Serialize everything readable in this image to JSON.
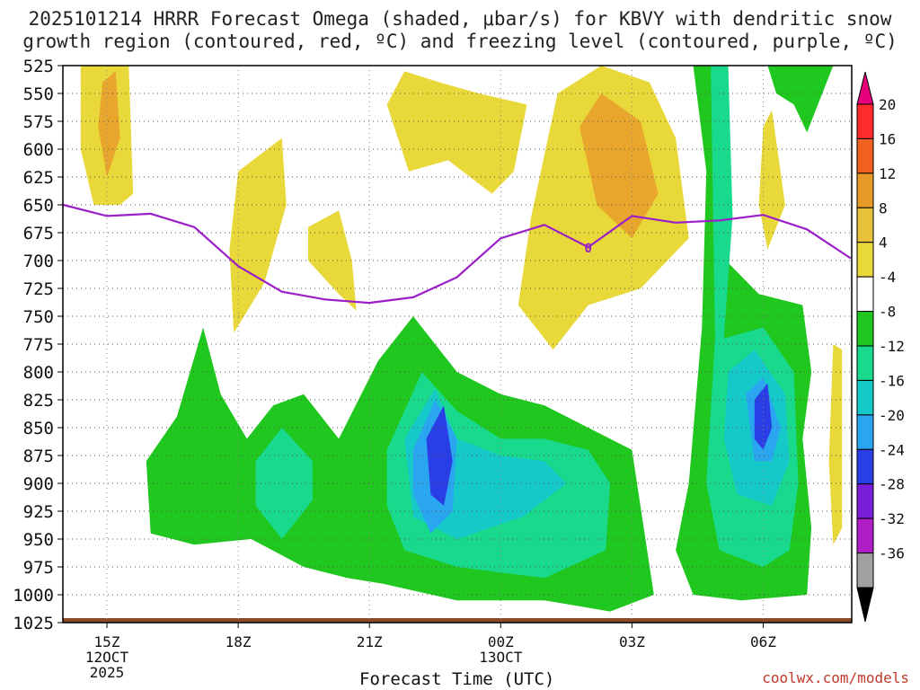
{
  "header": {
    "line1": "2025101214 HRRR Forecast Omega (shaded, μbar/s) for KBVY with dendritic snow",
    "line2": "growth region (contoured, red, ºC) and freezing level (contoured, purple, ºC)"
  },
  "chart_data": {
    "type": "heatmap",
    "title": "2025101214 HRRR Forecast Omega (shaded, μbar/s) for KBVY with dendritic snow growth region (contoured, red, ºC) and freezing level (contoured, purple, ºC)",
    "xlabel": "Forecast Time (UTC)",
    "ylabel": "",
    "x_ticks": [
      {
        "hour": 15,
        "lines": [
          "15Z",
          "12OCT",
          "2025"
        ]
      },
      {
        "hour": 18,
        "lines": [
          "18Z"
        ]
      },
      {
        "hour": 21,
        "lines": [
          "21Z"
        ]
      },
      {
        "hour": 24,
        "lines": [
          "00Z",
          "13OCT"
        ]
      },
      {
        "hour": 27,
        "lines": [
          "03Z"
        ]
      },
      {
        "hour": 30,
        "lines": [
          "06Z"
        ]
      }
    ],
    "xlim": [
      14.0,
      32.0
    ],
    "y_levels": [
      "525",
      "550",
      "575",
      "600",
      "625",
      "650",
      "675",
      "700",
      "725",
      "750",
      "775",
      "800",
      "825",
      "850",
      "875",
      "900",
      "925",
      "950",
      "975",
      "1000",
      "1025"
    ],
    "ylim": [
      525,
      1025
    ],
    "colorbar": {
      "labels": [
        "20",
        "16",
        "12",
        "8",
        "4",
        "-4",
        "-8",
        "-12",
        "-16",
        "-20",
        "-24",
        "-28",
        "-32",
        "-36"
      ],
      "colors": [
        "#e6007a",
        "#ff2a2a",
        "#f0601e",
        "#e89a28",
        "#e8c13a",
        "#e8d83a",
        "#ffffff",
        "#1fc71f",
        "#19d98c",
        "#16c9c9",
        "#2aa6f0",
        "#2a3ee6",
        "#7a1ed9",
        "#b01ec8",
        "#a0a0a0",
        "#000000"
      ]
    },
    "freezing_level": {
      "label": "0",
      "hours": [
        14.0,
        15.0,
        16.0,
        17.0,
        18.0,
        19.0,
        20.0,
        21.0,
        22.0,
        23.0,
        24.0,
        25.0,
        26.0,
        27.0,
        28.0,
        29.0,
        30.0,
        31.0,
        32.0
      ],
      "pressure": [
        650,
        660,
        658,
        670,
        705,
        728,
        735,
        738,
        733,
        715,
        680,
        668,
        688,
        660,
        666,
        664,
        659,
        672,
        698
      ]
    },
    "regions": [
      {
        "level": 4,
        "pts": [
          [
            14.4,
            525
          ],
          [
            15.5,
            525
          ],
          [
            15.6,
            640
          ],
          [
            15.3,
            650
          ],
          [
            14.7,
            650
          ],
          [
            14.4,
            600
          ]
        ]
      },
      {
        "level": 8,
        "pts": [
          [
            14.9,
            540
          ],
          [
            15.2,
            530
          ],
          [
            15.3,
            590
          ],
          [
            15.0,
            625
          ],
          [
            14.8,
            580
          ]
        ]
      },
      {
        "level": 4,
        "pts": [
          [
            17.8,
            690
          ],
          [
            18.0,
            620
          ],
          [
            19.0,
            590
          ],
          [
            19.1,
            650
          ],
          [
            18.6,
            720
          ],
          [
            17.9,
            765
          ]
        ]
      },
      {
        "level": 4,
        "pts": [
          [
            19.6,
            670
          ],
          [
            20.3,
            655
          ],
          [
            20.6,
            700
          ],
          [
            20.7,
            745
          ],
          [
            20.3,
            730
          ],
          [
            19.6,
            700
          ]
        ]
      },
      {
        "level": 4,
        "pts": [
          [
            21.4,
            560
          ],
          [
            21.8,
            530
          ],
          [
            22.6,
            540
          ],
          [
            23.5,
            550
          ],
          [
            24.6,
            560
          ],
          [
            24.3,
            620
          ],
          [
            23.8,
            640
          ],
          [
            22.8,
            610
          ],
          [
            21.9,
            620
          ]
        ]
      },
      {
        "level": 4,
        "pts": [
          [
            25.3,
            550
          ],
          [
            26.3,
            525
          ],
          [
            27.4,
            540
          ],
          [
            28.0,
            590
          ],
          [
            28.3,
            680
          ],
          [
            27.2,
            725
          ],
          [
            26.0,
            740
          ],
          [
            25.2,
            780
          ],
          [
            24.4,
            740
          ],
          [
            24.7,
            660
          ]
        ]
      },
      {
        "level": 8,
        "pts": [
          [
            25.8,
            580
          ],
          [
            26.3,
            550
          ],
          [
            27.2,
            575
          ],
          [
            27.6,
            640
          ],
          [
            27.0,
            680
          ],
          [
            26.2,
            650
          ]
        ]
      },
      {
        "level": 4,
        "pts": [
          [
            31.6,
            775
          ],
          [
            31.8,
            780
          ],
          [
            31.8,
            940
          ],
          [
            31.6,
            955
          ],
          [
            31.5,
            880
          ]
        ]
      },
      {
        "level": 4,
        "pts": [
          [
            30.0,
            580
          ],
          [
            30.2,
            565
          ],
          [
            30.5,
            650
          ],
          [
            30.1,
            690
          ],
          [
            29.9,
            650
          ]
        ]
      },
      {
        "level": -4,
        "pts": [
          [
            15.9,
            880
          ],
          [
            16.6,
            840
          ],
          [
            17.2,
            760
          ],
          [
            17.6,
            820
          ],
          [
            18.2,
            860
          ],
          [
            18.8,
            830
          ],
          [
            19.5,
            820
          ],
          [
            20.3,
            860
          ],
          [
            21.2,
            790
          ],
          [
            22.0,
            750
          ],
          [
            23.0,
            800
          ],
          [
            24.0,
            820
          ],
          [
            25.0,
            830
          ],
          [
            26.0,
            850
          ],
          [
            27.0,
            870
          ],
          [
            27.5,
            1000
          ],
          [
            26.5,
            1015
          ],
          [
            25.0,
            1005
          ],
          [
            23.0,
            1005
          ],
          [
            21.3,
            990
          ],
          [
            20.5,
            985
          ],
          [
            19.5,
            975
          ],
          [
            18.3,
            950
          ],
          [
            17.0,
            955
          ],
          [
            16.0,
            945
          ]
        ]
      },
      {
        "level": -8,
        "pts": [
          [
            18.4,
            880
          ],
          [
            19.0,
            850
          ],
          [
            19.7,
            880
          ],
          [
            19.7,
            915
          ],
          [
            19.0,
            950
          ],
          [
            18.4,
            920
          ]
        ]
      },
      {
        "level": -8,
        "pts": [
          [
            21.4,
            870
          ],
          [
            22.2,
            800
          ],
          [
            23.0,
            835
          ],
          [
            24.0,
            860
          ],
          [
            25.0,
            860
          ],
          [
            26.0,
            870
          ],
          [
            26.5,
            900
          ],
          [
            26.4,
            960
          ],
          [
            25.0,
            985
          ],
          [
            23.0,
            975
          ],
          [
            21.8,
            960
          ],
          [
            21.4,
            920
          ]
        ]
      },
      {
        "level": -12,
        "pts": [
          [
            21.8,
            860
          ],
          [
            22.5,
            815
          ],
          [
            23.0,
            860
          ],
          [
            24.0,
            875
          ],
          [
            25.0,
            880
          ],
          [
            25.5,
            900
          ],
          [
            24.5,
            930
          ],
          [
            23.0,
            950
          ],
          [
            22.0,
            930
          ]
        ]
      },
      {
        "level": -16,
        "pts": [
          [
            22.0,
            870
          ],
          [
            22.5,
            825
          ],
          [
            23.0,
            860
          ],
          [
            22.9,
            925
          ],
          [
            22.4,
            945
          ],
          [
            22.0,
            910
          ]
        ]
      },
      {
        "level": -20,
        "pts": [
          [
            22.3,
            860
          ],
          [
            22.7,
            830
          ],
          [
            22.9,
            880
          ],
          [
            22.7,
            920
          ],
          [
            22.4,
            910
          ]
        ]
      },
      {
        "level": -4,
        "pts": [
          [
            28.4,
            525
          ],
          [
            29.1,
            525
          ],
          [
            29.1,
            600
          ],
          [
            28.9,
            690
          ],
          [
            29.9,
            730
          ],
          [
            30.9,
            740
          ],
          [
            31.1,
            800
          ],
          [
            30.9,
            860
          ],
          [
            31.1,
            940
          ],
          [
            31.0,
            1000
          ],
          [
            29.5,
            1005
          ],
          [
            28.4,
            1000
          ],
          [
            28.0,
            960
          ],
          [
            28.3,
            900
          ],
          [
            28.6,
            760
          ],
          [
            28.7,
            620
          ]
        ]
      },
      {
        "level": -4,
        "pts": [
          [
            30.1,
            525
          ],
          [
            31.6,
            525
          ],
          [
            31.0,
            585
          ],
          [
            30.7,
            560
          ],
          [
            30.3,
            550
          ]
        ]
      },
      {
        "level": -8,
        "pts": [
          [
            28.8,
            525
          ],
          [
            29.2,
            525
          ],
          [
            29.3,
            660
          ],
          [
            29.1,
            770
          ],
          [
            30.0,
            760
          ],
          [
            30.7,
            800
          ],
          [
            30.8,
            900
          ],
          [
            30.6,
            960
          ],
          [
            30.0,
            975
          ],
          [
            29.0,
            960
          ],
          [
            28.7,
            900
          ],
          [
            28.9,
            770
          ]
        ]
      },
      {
        "level": -12,
        "pts": [
          [
            29.2,
            800
          ],
          [
            29.8,
            780
          ],
          [
            30.5,
            820
          ],
          [
            30.6,
            880
          ],
          [
            30.2,
            920
          ],
          [
            29.4,
            910
          ],
          [
            29.1,
            860
          ]
        ]
      },
      {
        "level": -16,
        "pts": [
          [
            29.6,
            820
          ],
          [
            30.0,
            805
          ],
          [
            30.4,
            850
          ],
          [
            30.2,
            880
          ],
          [
            29.8,
            880
          ]
        ]
      },
      {
        "level": -20,
        "pts": [
          [
            29.8,
            825
          ],
          [
            30.1,
            810
          ],
          [
            30.2,
            850
          ],
          [
            30.0,
            870
          ],
          [
            29.8,
            860
          ]
        ]
      }
    ]
  },
  "credit": "coolwx.com/models"
}
